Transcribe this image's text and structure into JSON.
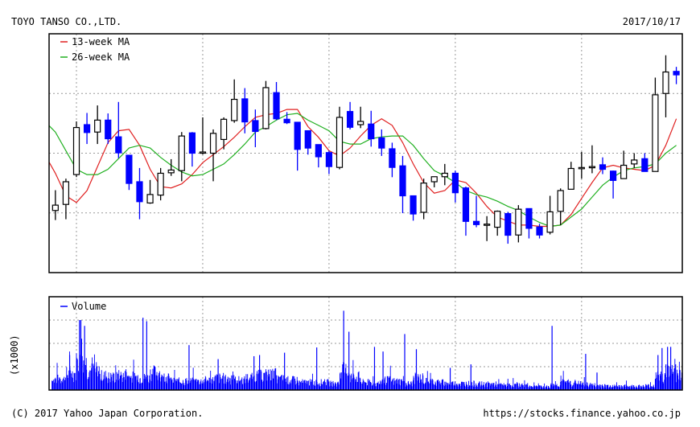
{
  "header": {
    "company": "TOYO TANSO CO.,LTD.",
    "date": "2017/10/17"
  },
  "footer": {
    "copyright": "(C) 2017 Yahoo Japan Corporation.",
    "url": "https://stocks.finance.yahoo.co.jp"
  },
  "colors": {
    "up_candle": "#ffffff",
    "down_candle": "#0000ff",
    "ma13": "#e02020",
    "ma26": "#20b020",
    "volume": "#0000ff",
    "grid": "#999999"
  },
  "chart_data": [
    {
      "type": "candlestick",
      "interval": "monthly",
      "ylim": [
        1000,
        3000
      ],
      "yticks": [
        "1000",
        "1500",
        "2000",
        "2500",
        "3000"
      ],
      "xticks": [
        "2013/1",
        "2014/1",
        "2015/1",
        "2016/1",
        "2017/1"
      ],
      "grid": true,
      "legend_position": "top-left",
      "legend": [
        {
          "name": "13-week MA",
          "color": "#e02020"
        },
        {
          "name": "26-week MA",
          "color": "#20b020"
        }
      ],
      "candles": [
        [
          "2012/11",
          1520,
          1690,
          1440,
          1565
        ],
        [
          "2012/12",
          1571,
          1787,
          1447,
          1761
        ],
        [
          "2013/1",
          1821,
          2266,
          1800,
          2215
        ],
        [
          "2013/2",
          2239,
          2337,
          2077,
          2173
        ],
        [
          "2013/3",
          2177,
          2400,
          2077,
          2277
        ],
        [
          "2013/4",
          2277,
          2333,
          2077,
          2121
        ],
        [
          "2013/5",
          2137,
          2429,
          1959,
          2003
        ],
        [
          "2013/6",
          1983,
          1983,
          1692,
          1747
        ],
        [
          "2013/7",
          1761,
          1876,
          1447,
          1594
        ],
        [
          "2013/8",
          1583,
          1776,
          1576,
          1654
        ],
        [
          "2013/9",
          1649,
          1876,
          1605,
          1832
        ],
        [
          "2013/10",
          1836,
          1950,
          1810,
          1859
        ],
        [
          "2013/11",
          1854,
          2177,
          1765,
          2144
        ],
        [
          "2013/12",
          2170,
          2177,
          1888,
          2000
        ],
        [
          "2014/1",
          2005,
          2300,
          1990,
          2010
        ],
        [
          "2014/2",
          2000,
          2199,
          1765,
          2166
        ],
        [
          "2014/3",
          2115,
          2300,
          2032,
          2284
        ],
        [
          "2014/4",
          2273,
          2618,
          2255,
          2451
        ],
        [
          "2014/5",
          2455,
          2545,
          2166,
          2262
        ],
        [
          "2014/6",
          2273,
          2366,
          2050,
          2182
        ],
        [
          "2014/7",
          2206,
          2605,
          2199,
          2549
        ],
        [
          "2014/8",
          2507,
          2596,
          2277,
          2288
        ],
        [
          "2014/9",
          2284,
          2344,
          2244,
          2255
        ],
        [
          "2014/10",
          2259,
          2259,
          1854,
          2032
        ],
        [
          "2014/11",
          2188,
          2188,
          1988,
          2043
        ],
        [
          "2014/12",
          2072,
          2072,
          1881,
          1970
        ],
        [
          "2015/1",
          2005,
          2021,
          1825,
          1888
        ],
        [
          "2015/2",
          1881,
          2389,
          1865,
          2300
        ],
        [
          "2015/3",
          2349,
          2429,
          2199,
          2217
        ],
        [
          "2015/4",
          2239,
          2389,
          2210,
          2266
        ],
        [
          "2015/5",
          2244,
          2355,
          2055,
          2121
        ],
        [
          "2015/6",
          2128,
          2199,
          1977,
          2043
        ],
        [
          "2015/7",
          2037,
          2088,
          1799,
          1881
        ],
        [
          "2015/8",
          1894,
          1977,
          1498,
          1643
        ],
        [
          "2015/9",
          1643,
          1643,
          1435,
          1491
        ],
        [
          "2015/10",
          1505,
          1787,
          1447,
          1750
        ],
        [
          "2015/11",
          1761,
          1803,
          1714,
          1803
        ],
        [
          "2015/12",
          1803,
          1910,
          1732,
          1832
        ],
        [
          "2016/1",
          1832,
          1854,
          1587,
          1669
        ],
        [
          "2016/2",
          1709,
          1720,
          1309,
          1429
        ],
        [
          "2016/3",
          1429,
          1643,
          1380,
          1402
        ],
        [
          "2016/4",
          1405,
          1473,
          1264,
          1406
        ],
        [
          "2016/5",
          1380,
          1520,
          1309,
          1514
        ],
        [
          "2016/6",
          1494,
          1509,
          1242,
          1313
        ],
        [
          "2016/7",
          1315,
          1565,
          1253,
          1531
        ],
        [
          "2016/8",
          1536,
          1536,
          1286,
          1371
        ],
        [
          "2016/9",
          1382,
          1409,
          1286,
          1315
        ],
        [
          "2016/10",
          1338,
          1643,
          1320,
          1509
        ],
        [
          "2016/11",
          1513,
          1705,
          1398,
          1687
        ],
        [
          "2016/12",
          1698,
          1928,
          1698,
          1872
        ],
        [
          "2017/1",
          1875,
          2010,
          1787,
          1880
        ],
        [
          "2017/2",
          1885,
          2066,
          1832,
          1888
        ],
        [
          "2017/3",
          1903,
          1965,
          1825,
          1865
        ],
        [
          "2017/4",
          1850,
          1854,
          1620,
          1772
        ],
        [
          "2017/5",
          1787,
          2021,
          1787,
          1899
        ],
        [
          "2017/6",
          1910,
          2000,
          1876,
          1943
        ],
        [
          "2017/7",
          1954,
          2000,
          1847,
          1847
        ],
        [
          "2017/8",
          1847,
          2633,
          1847,
          2489
        ],
        [
          "2017/9",
          2500,
          2820,
          2300,
          2680
        ],
        [
          "2017/10",
          2685,
          2723,
          2578,
          2656
        ]
      ],
      "ma13": [
        [
          "2012/10",
          1988
        ],
        [
          "2012/11",
          1832
        ],
        [
          "2012/12",
          1643
        ],
        [
          "2013/1",
          1587
        ],
        [
          "2013/2",
          1687
        ],
        [
          "2013/3",
          1888
        ],
        [
          "2013/4",
          2088
        ],
        [
          "2013/5",
          2188
        ],
        [
          "2013/6",
          2199
        ],
        [
          "2013/7",
          2066
        ],
        [
          "2013/8",
          1865
        ],
        [
          "2013/9",
          1720
        ],
        [
          "2013/10",
          1709
        ],
        [
          "2013/11",
          1743
        ],
        [
          "2013/12",
          1821
        ],
        [
          "2014/1",
          1921
        ],
        [
          "2014/2",
          1988
        ],
        [
          "2014/3",
          2055
        ],
        [
          "2014/4",
          2133
        ],
        [
          "2014/5",
          2222
        ],
        [
          "2014/6",
          2300
        ],
        [
          "2014/7",
          2322
        ],
        [
          "2014/8",
          2333
        ],
        [
          "2014/9",
          2366
        ],
        [
          "2014/10",
          2366
        ],
        [
          "2014/11",
          2222
        ],
        [
          "2014/12",
          2133
        ],
        [
          "2015/1",
          2021
        ],
        [
          "2015/2",
          1977
        ],
        [
          "2015/3",
          2043
        ],
        [
          "2015/4",
          2144
        ],
        [
          "2015/5",
          2233
        ],
        [
          "2015/6",
          2288
        ],
        [
          "2015/7",
          2233
        ],
        [
          "2015/8",
          2088
        ],
        [
          "2015/9",
          1910
        ],
        [
          "2015/10",
          1754
        ],
        [
          "2015/11",
          1665
        ],
        [
          "2015/12",
          1687
        ],
        [
          "2016/1",
          1776
        ],
        [
          "2016/2",
          1754
        ],
        [
          "2016/3",
          1665
        ],
        [
          "2016/4",
          1554
        ],
        [
          "2016/5",
          1465
        ],
        [
          "2016/6",
          1431
        ],
        [
          "2016/7",
          1398
        ],
        [
          "2016/8",
          1398
        ],
        [
          "2016/9",
          1387
        ],
        [
          "2016/10",
          1387
        ],
        [
          "2016/11",
          1398
        ],
        [
          "2016/12",
          1487
        ],
        [
          "2017/1",
          1621
        ],
        [
          "2017/2",
          1754
        ],
        [
          "2017/3",
          1877
        ],
        [
          "2017/4",
          1899
        ],
        [
          "2017/5",
          1877
        ],
        [
          "2017/6",
          1865
        ],
        [
          "2017/7",
          1854
        ],
        [
          "2017/8",
          1899
        ],
        [
          "2017/9",
          2066
        ],
        [
          "2017/10",
          2288
        ]
      ],
      "ma26": [
        [
          "2012/10",
          2266
        ],
        [
          "2012/11",
          2177
        ],
        [
          "2012/12",
          2021
        ],
        [
          "2013/1",
          1865
        ],
        [
          "2013/2",
          1821
        ],
        [
          "2013/3",
          1821
        ],
        [
          "2013/4",
          1865
        ],
        [
          "2013/5",
          1954
        ],
        [
          "2013/6",
          2043
        ],
        [
          "2013/7",
          2066
        ],
        [
          "2013/8",
          2043
        ],
        [
          "2013/9",
          1965
        ],
        [
          "2013/10",
          1899
        ],
        [
          "2013/11",
          1843
        ],
        [
          "2013/12",
          1810
        ],
        [
          "2014/1",
          1821
        ],
        [
          "2014/2",
          1865
        ],
        [
          "2014/3",
          1910
        ],
        [
          "2014/4",
          1988
        ],
        [
          "2014/5",
          2077
        ],
        [
          "2014/6",
          2177
        ],
        [
          "2014/7",
          2222
        ],
        [
          "2014/8",
          2277
        ],
        [
          "2014/9",
          2322
        ],
        [
          "2014/10",
          2333
        ],
        [
          "2014/11",
          2277
        ],
        [
          "2014/12",
          2233
        ],
        [
          "2015/1",
          2188
        ],
        [
          "2015/2",
          2099
        ],
        [
          "2015/3",
          2077
        ],
        [
          "2015/4",
          2077
        ],
        [
          "2015/5",
          2121
        ],
        [
          "2015/6",
          2137
        ],
        [
          "2015/7",
          2144
        ],
        [
          "2015/8",
          2144
        ],
        [
          "2015/9",
          2066
        ],
        [
          "2015/10",
          1954
        ],
        [
          "2015/11",
          1854
        ],
        [
          "2015/12",
          1810
        ],
        [
          "2016/1",
          1754
        ],
        [
          "2016/2",
          1687
        ],
        [
          "2016/3",
          1654
        ],
        [
          "2016/4",
          1632
        ],
        [
          "2016/5",
          1598
        ],
        [
          "2016/6",
          1554
        ],
        [
          "2016/7",
          1520
        ],
        [
          "2016/8",
          1465
        ],
        [
          "2016/9",
          1420
        ],
        [
          "2016/10",
          1387
        ],
        [
          "2016/11",
          1398
        ],
        [
          "2016/12",
          1465
        ],
        [
          "2017/1",
          1532
        ],
        [
          "2017/2",
          1632
        ],
        [
          "2017/3",
          1732
        ],
        [
          "2017/4",
          1799
        ],
        [
          "2017/5",
          1854
        ],
        [
          "2017/6",
          1877
        ],
        [
          "2017/7",
          1888
        ],
        [
          "2017/8",
          1910
        ],
        [
          "2017/9",
          2000
        ],
        [
          "2017/10",
          2066
        ]
      ]
    },
    {
      "type": "bar",
      "series": [
        {
          "name": "Volume"
        }
      ],
      "ylabel": "(x1000)",
      "ylim": [
        0,
        800
      ],
      "yticks": [
        "0",
        "200",
        "400",
        "600",
        "800"
      ],
      "xticks": [
        "2013/1",
        "2014/1",
        "2015/1",
        "2016/1",
        "2017/1"
      ],
      "grid": true,
      "legend_position": "top-left",
      "monthly_typical_volume": [
        [
          "2012/10",
          90
        ],
        [
          "2012/11",
          100
        ],
        [
          "2012/12",
          150
        ],
        [
          "2013/1",
          250
        ],
        [
          "2013/2",
          180
        ],
        [
          "2013/3",
          130
        ],
        [
          "2013/4",
          120
        ],
        [
          "2013/5",
          130
        ],
        [
          "2013/6",
          120
        ],
        [
          "2013/7",
          110
        ],
        [
          "2013/8",
          160
        ],
        [
          "2013/9",
          110
        ],
        [
          "2013/10",
          80
        ],
        [
          "2013/11",
          80
        ],
        [
          "2013/12",
          80
        ],
        [
          "2014/1",
          90
        ],
        [
          "2014/2",
          110
        ],
        [
          "2014/3",
          100
        ],
        [
          "2014/4",
          90
        ],
        [
          "2014/5",
          110
        ],
        [
          "2014/6",
          130
        ],
        [
          "2014/7",
          140
        ],
        [
          "2014/8",
          100
        ],
        [
          "2014/9",
          90
        ],
        [
          "2014/10",
          70
        ],
        [
          "2014/11",
          70
        ],
        [
          "2014/12",
          70
        ],
        [
          "2015/1",
          60
        ],
        [
          "2015/2",
          180
        ],
        [
          "2015/3",
          120
        ],
        [
          "2015/4",
          70
        ],
        [
          "2015/5",
          60
        ],
        [
          "2015/6",
          90
        ],
        [
          "2015/7",
          80
        ],
        [
          "2015/8",
          60
        ],
        [
          "2015/9",
          110
        ],
        [
          "2015/10",
          80
        ],
        [
          "2015/11",
          70
        ],
        [
          "2015/12",
          60
        ],
        [
          "2016/1",
          60
        ],
        [
          "2016/2",
          60
        ],
        [
          "2016/3",
          55
        ],
        [
          "2016/4",
          55
        ],
        [
          "2016/5",
          45
        ],
        [
          "2016/6",
          45
        ],
        [
          "2016/7",
          45
        ],
        [
          "2016/8",
          35
        ],
        [
          "2016/9",
          30
        ],
        [
          "2016/10",
          45
        ],
        [
          "2016/11",
          70
        ],
        [
          "2016/12",
          60
        ],
        [
          "2017/1",
          50
        ],
        [
          "2017/2",
          45
        ],
        [
          "2017/3",
          40
        ],
        [
          "2017/4",
          35
        ],
        [
          "2017/5",
          35
        ],
        [
          "2017/6",
          35
        ],
        [
          "2017/7",
          40
        ],
        [
          "2017/8",
          120
        ],
        [
          "2017/9",
          180
        ],
        [
          "2017/10",
          140
        ]
      ],
      "peaks": [
        [
          "2012-12-12",
          300
        ],
        [
          "2013-01-10",
          600
        ],
        [
          "2013-01-14",
          600
        ],
        [
          "2013-01-16",
          440
        ],
        [
          "2013-01-25",
          550
        ],
        [
          "2013-07-11",
          620
        ],
        [
          "2013-07-22",
          590
        ],
        [
          "2013-11-22",
          385
        ],
        [
          "2014-02-14",
          265
        ],
        [
          "2014-05-28",
          290
        ],
        [
          "2014-06-13",
          300
        ],
        [
          "2014-08-25",
          320
        ],
        [
          "2014-11-26",
          365
        ],
        [
          "2015-02-12",
          680
        ],
        [
          "2015-02-26",
          500
        ],
        [
          "2015-05-11",
          370
        ],
        [
          "2015-06-05",
          330
        ],
        [
          "2015-08-07",
          480
        ],
        [
          "2015-09-10",
          350
        ],
        [
          "2015-12-17",
          190
        ],
        [
          "2016-02-15",
          220
        ],
        [
          "2016-10-07",
          550
        ],
        [
          "2017-01-13",
          310
        ],
        [
          "2017-02-14",
          150
        ],
        [
          "2017-08-09",
          300
        ],
        [
          "2017-08-21",
          360
        ],
        [
          "2017-09-06",
          370
        ],
        [
          "2017-09-15",
          370
        ],
        [
          "2017-09-29",
          220
        ]
      ]
    }
  ]
}
